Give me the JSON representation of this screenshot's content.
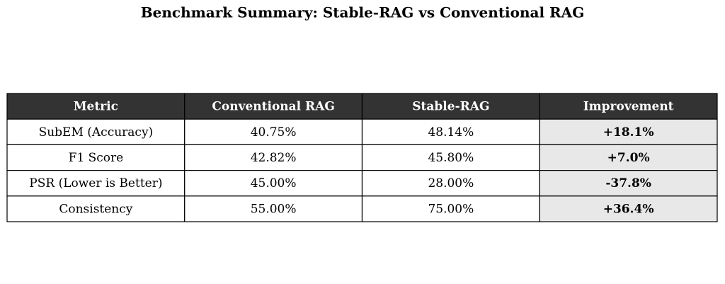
{
  "title": "Benchmark Summary: Stable-RAG vs Conventional RAG",
  "table": {
    "header": [
      "Metric",
      "Conventional RAG",
      "Stable-RAG",
      "Improvement"
    ],
    "rows": [
      [
        "SubEM (Accuracy)",
        "40.75%",
        "48.14%",
        "+18.1%"
      ],
      [
        "F1 Score",
        "42.82%",
        "45.80%",
        "+7.0%"
      ],
      [
        "PSR (Lower is Better)",
        "45.00%",
        "28.00%",
        "-37.8%"
      ],
      [
        "Consistency",
        "55.00%",
        "75.00%",
        "+36.4%"
      ]
    ]
  }
}
